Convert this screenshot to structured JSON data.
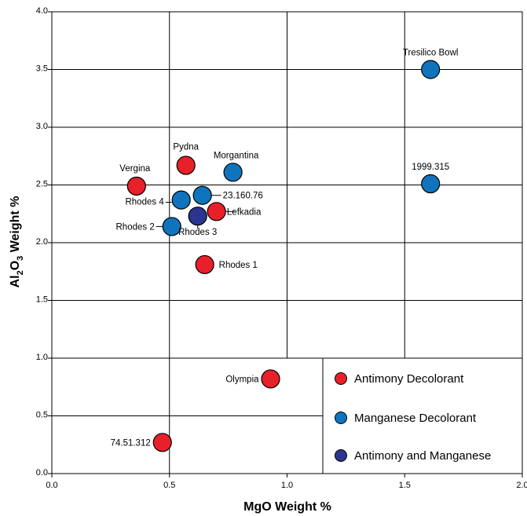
{
  "chart_data": {
    "type": "scatter",
    "xlabel": "MgO Weight %",
    "ylabel": {
      "main": "Al",
      "sub1": "2",
      "mid": "O",
      "sub2": "3",
      "rest": " Weight %"
    },
    "xlim": [
      0.0,
      2.0
    ],
    "ylim": [
      0.0,
      4.0
    ],
    "x_ticks": [
      "0.0",
      "0.5",
      "1.0",
      "1.5",
      "2.0"
    ],
    "y_ticks": [
      "0.0",
      "0.5",
      "1.0",
      "1.5",
      "2.0",
      "2.5",
      "3.0",
      "3.5",
      "4.0"
    ],
    "legend_position": "bottom-right",
    "series": [
      {
        "name": "Antimony Decolorant",
        "color": "#e8202a",
        "points": [
          {
            "label": "Pydna",
            "x": 0.57,
            "y": 2.67
          },
          {
            "label": "Vergina",
            "x": 0.36,
            "y": 2.49
          },
          {
            "label": "Lefkadia",
            "x": 0.7,
            "y": 2.27
          },
          {
            "label": "Rhodes 1",
            "x": 0.65,
            "y": 1.81
          },
          {
            "label": "Olympia",
            "x": 0.93,
            "y": 0.82
          },
          {
            "label": "74.51.312",
            "x": 0.47,
            "y": 0.27
          }
        ]
      },
      {
        "name": "Manganese Decolorant",
        "color": "#0f74bd",
        "points": [
          {
            "label": "Tresilico Bowl",
            "x": 1.61,
            "y": 3.5
          },
          {
            "label": "1999.315",
            "x": 1.61,
            "y": 2.51
          },
          {
            "label": "Morgantina",
            "x": 0.77,
            "y": 2.61
          },
          {
            "label": "23.160.76",
            "x": 0.64,
            "y": 2.41
          },
          {
            "label": "Rhodes 4",
            "x": 0.55,
            "y": 2.37
          },
          {
            "label": "Rhodes 2",
            "x": 0.51,
            "y": 2.14
          }
        ]
      },
      {
        "name": "Antimony and Manganese",
        "color": "#2b3590",
        "points": [
          {
            "label": "Rhodes 3",
            "x": 0.62,
            "y": 2.23
          }
        ]
      }
    ]
  }
}
